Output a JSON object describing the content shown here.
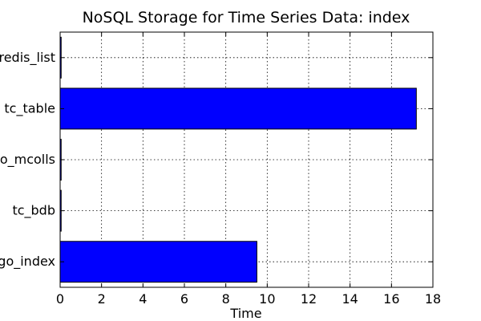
{
  "chart_data": {
    "type": "bar",
    "orientation": "horizontal",
    "title": "NoSQL Storage for Time Series Data: index",
    "xlabel": "Time",
    "ylabel": "",
    "xlim": [
      0,
      18
    ],
    "xticks": [
      0,
      2,
      4,
      6,
      8,
      10,
      12,
      14,
      16,
      18
    ],
    "xtick_labels": [
      "0",
      "2",
      "4",
      "6",
      "8",
      "10",
      "12",
      "14",
      "16",
      "18"
    ],
    "categories": [
      "mongo_index",
      "tc_bdb",
      "mongo_mcolls",
      "tc_table",
      "redis_list"
    ],
    "values": [
      9.5,
      0.05,
      0.05,
      17.2,
      0.05
    ],
    "bar_color": "#0000ff",
    "grid": true
  }
}
